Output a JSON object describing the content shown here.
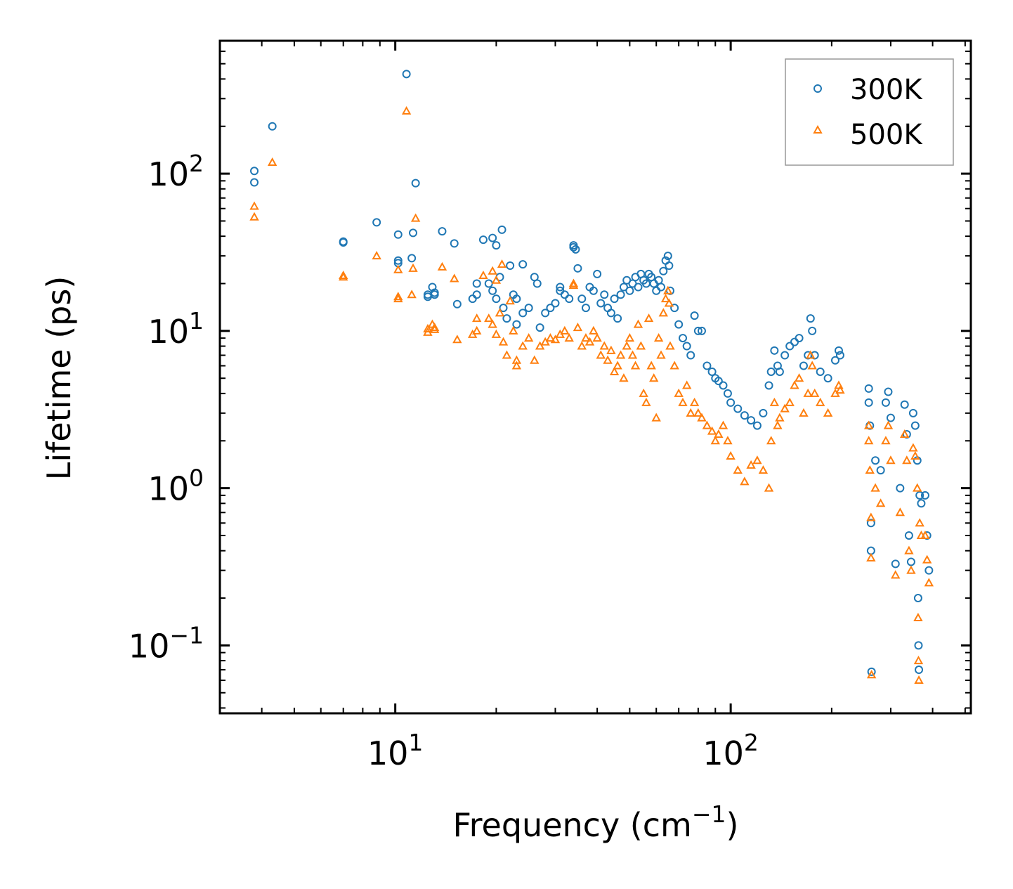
{
  "chart_data": {
    "type": "scatter",
    "xscale": "log",
    "yscale": "log",
    "xlabel": "Frequency (cm",
    "xlabel_sup": "−1",
    "xlabel_end": ")",
    "ylabel": "Lifetime (ps)",
    "xlim": [
      3.0,
      520
    ],
    "ylim": [
      0.037,
      700
    ],
    "x_ticks": [
      {
        "value": 10,
        "base": "10",
        "exp": "1"
      },
      {
        "value": 100,
        "base": "10",
        "exp": "2"
      }
    ],
    "y_ticks": [
      {
        "value": 0.1,
        "base": "10",
        "exp": "−1"
      },
      {
        "value": 1,
        "base": "10",
        "exp": "0"
      },
      {
        "value": 10,
        "base": "10",
        "exp": "1"
      },
      {
        "value": 100,
        "base": "10",
        "exp": "2"
      }
    ],
    "legend_position": "top-right",
    "series": [
      {
        "name": "300K",
        "marker": "circle",
        "color": "#1f77b4",
        "points": [
          [
            3.8,
            104
          ],
          [
            3.8,
            88
          ],
          [
            4.3,
            200
          ],
          [
            7.0,
            37
          ],
          [
            7.0,
            36.5
          ],
          [
            8.8,
            49
          ],
          [
            10.2,
            41
          ],
          [
            10.2,
            28
          ],
          [
            10.2,
            27
          ],
          [
            10.8,
            430
          ],
          [
            11.2,
            29
          ],
          [
            11.3,
            42
          ],
          [
            11.5,
            87
          ],
          [
            12.5,
            17
          ],
          [
            12.5,
            16.5
          ],
          [
            12.9,
            19
          ],
          [
            13.1,
            17.5
          ],
          [
            13.1,
            17
          ],
          [
            13.8,
            43
          ],
          [
            15.0,
            36
          ],
          [
            15.3,
            14.8
          ],
          [
            17.0,
            16
          ],
          [
            17.5,
            20
          ],
          [
            17.5,
            17
          ],
          [
            18.3,
            38
          ],
          [
            19.0,
            20
          ],
          [
            19.5,
            39
          ],
          [
            19.5,
            18
          ],
          [
            20.0,
            16
          ],
          [
            20.0,
            35
          ],
          [
            20.5,
            22
          ],
          [
            20.8,
            44
          ],
          [
            21.0,
            14
          ],
          [
            21.5,
            12
          ],
          [
            22.0,
            26
          ],
          [
            22.5,
            17
          ],
          [
            23.0,
            11
          ],
          [
            23.0,
            16
          ],
          [
            24.0,
            26.5
          ],
          [
            24.0,
            13
          ],
          [
            25.0,
            14
          ],
          [
            26.0,
            22
          ],
          [
            26.5,
            20
          ],
          [
            27.0,
            10.5
          ],
          [
            28.0,
            13
          ],
          [
            29.0,
            14
          ],
          [
            30.0,
            15
          ],
          [
            31.0,
            18
          ],
          [
            31.0,
            19
          ],
          [
            32.0,
            17
          ],
          [
            33.0,
            16
          ],
          [
            34.0,
            35
          ],
          [
            34.0,
            34
          ],
          [
            34.5,
            33
          ],
          [
            35.0,
            25
          ],
          [
            36.0,
            16
          ],
          [
            37.0,
            14
          ],
          [
            38.0,
            19
          ],
          [
            39.0,
            18
          ],
          [
            40.0,
            23
          ],
          [
            41.0,
            15
          ],
          [
            42.0,
            17
          ],
          [
            43.0,
            14
          ],
          [
            44.0,
            13
          ],
          [
            45.0,
            16
          ],
          [
            46.0,
            12
          ],
          [
            47.0,
            17
          ],
          [
            48.0,
            19
          ],
          [
            49.0,
            21
          ],
          [
            50.0,
            18
          ],
          [
            51.0,
            20
          ],
          [
            52.0,
            22
          ],
          [
            53.0,
            19
          ],
          [
            54.0,
            23
          ],
          [
            55.0,
            21
          ],
          [
            56.0,
            20
          ],
          [
            57.0,
            23
          ],
          [
            58.0,
            22
          ],
          [
            59.0,
            20
          ],
          [
            60.0,
            18
          ],
          [
            61.0,
            21
          ],
          [
            62.0,
            19
          ],
          [
            63.0,
            24
          ],
          [
            64.0,
            28
          ],
          [
            65.0,
            30
          ],
          [
            65.5,
            26
          ],
          [
            66.0,
            18
          ],
          [
            68.0,
            14
          ],
          [
            70.0,
            11
          ],
          [
            72.0,
            9
          ],
          [
            74.0,
            8
          ],
          [
            76.0,
            7
          ],
          [
            78.0,
            12.5
          ],
          [
            80.0,
            10
          ],
          [
            82.0,
            10
          ],
          [
            85.0,
            6
          ],
          [
            88.0,
            5.5
          ],
          [
            90.0,
            5
          ],
          [
            92.0,
            4.8
          ],
          [
            95.0,
            4.5
          ],
          [
            98.0,
            4
          ],
          [
            100.0,
            3.5
          ],
          [
            105.0,
            3.2
          ],
          [
            110.0,
            2.9
          ],
          [
            115.0,
            2.7
          ],
          [
            120.0,
            2.5
          ],
          [
            125.0,
            3.0
          ],
          [
            130.0,
            4.5
          ],
          [
            132.0,
            5.5
          ],
          [
            135.0,
            7.5
          ],
          [
            138.0,
            6.0
          ],
          [
            140.0,
            5.5
          ],
          [
            145.0,
            7.0
          ],
          [
            150.0,
            8.0
          ],
          [
            155.0,
            8.5
          ],
          [
            160.0,
            9.0
          ],
          [
            165.0,
            6.0
          ],
          [
            170.0,
            7.0
          ],
          [
            173.0,
            12
          ],
          [
            175.0,
            10
          ],
          [
            178.0,
            7
          ],
          [
            185.0,
            5.5
          ],
          [
            195.0,
            5.0
          ],
          [
            205.0,
            6.5
          ],
          [
            210.0,
            7.5
          ],
          [
            212.0,
            7.0
          ],
          [
            258.0,
            4.3
          ],
          [
            258.0,
            3.5
          ],
          [
            260.0,
            2.5
          ],
          [
            262.0,
            0.6
          ],
          [
            262.0,
            0.4
          ],
          [
            263.0,
            0.068
          ],
          [
            270.0,
            1.5
          ],
          [
            280.0,
            1.3
          ],
          [
            290.0,
            3.5
          ],
          [
            295.0,
            4.1
          ],
          [
            300.0,
            2.8
          ],
          [
            310.0,
            0.33
          ],
          [
            320.0,
            1.0
          ],
          [
            330.0,
            3.4
          ],
          [
            335.0,
            2.2
          ],
          [
            340.0,
            0.5
          ],
          [
            345.0,
            0.34
          ],
          [
            350.0,
            3.0
          ],
          [
            355.0,
            2.5
          ],
          [
            360.0,
            1.5
          ],
          [
            362.0,
            0.2
          ],
          [
            363.0,
            0.1
          ],
          [
            364.0,
            0.07
          ],
          [
            366.0,
            0.9
          ],
          [
            370.0,
            0.8
          ],
          [
            380.0,
            0.9
          ],
          [
            385.0,
            0.5
          ],
          [
            390.0,
            0.3
          ]
        ]
      },
      {
        "name": "500K",
        "marker": "triangle",
        "color": "#ff7f0e",
        "points": [
          [
            3.8,
            62
          ],
          [
            3.8,
            53
          ],
          [
            4.3,
            118
          ],
          [
            7.0,
            22.5
          ],
          [
            7.0,
            22
          ],
          [
            8.8,
            30
          ],
          [
            10.2,
            24.5
          ],
          [
            10.2,
            16.5
          ],
          [
            10.2,
            16
          ],
          [
            10.8,
            250
          ],
          [
            11.2,
            17
          ],
          [
            11.3,
            25
          ],
          [
            11.5,
            52
          ],
          [
            12.5,
            10.3
          ],
          [
            12.5,
            9.8
          ],
          [
            12.9,
            11
          ],
          [
            13.1,
            10.5
          ],
          [
            13.1,
            10.2
          ],
          [
            13.8,
            25.5
          ],
          [
            15.0,
            21.5
          ],
          [
            15.3,
            8.8
          ],
          [
            17.0,
            9.5
          ],
          [
            17.5,
            12
          ],
          [
            17.5,
            10
          ],
          [
            18.3,
            22.5
          ],
          [
            19.0,
            12
          ],
          [
            19.5,
            24
          ],
          [
            19.5,
            11
          ],
          [
            20.0,
            9.5
          ],
          [
            20.0,
            21
          ],
          [
            20.5,
            13
          ],
          [
            20.8,
            26.5
          ],
          [
            21.0,
            8.5
          ],
          [
            21.5,
            7
          ],
          [
            22.0,
            15.5
          ],
          [
            22.5,
            10
          ],
          [
            23.0,
            6.5
          ],
          [
            23.0,
            6
          ],
          [
            24.0,
            8
          ],
          [
            25.0,
            9
          ],
          [
            26.0,
            6.5
          ],
          [
            27.0,
            8
          ],
          [
            28.0,
            8.5
          ],
          [
            29.0,
            9
          ],
          [
            30.0,
            8.8
          ],
          [
            31.0,
            9.5
          ],
          [
            32.0,
            10
          ],
          [
            33.0,
            9
          ],
          [
            34.0,
            20
          ],
          [
            34.0,
            19.5
          ],
          [
            35.0,
            10.5
          ],
          [
            36.0,
            8
          ],
          [
            37.0,
            9
          ],
          [
            38.0,
            8.5
          ],
          [
            39.0,
            10
          ],
          [
            40.0,
            9
          ],
          [
            41.0,
            7
          ],
          [
            42.0,
            8
          ],
          [
            43.0,
            6.5
          ],
          [
            44.0,
            7.5
          ],
          [
            45.0,
            5.5
          ],
          [
            46.0,
            6
          ],
          [
            47.0,
            7
          ],
          [
            48.0,
            5
          ],
          [
            49.0,
            8
          ],
          [
            50.0,
            9
          ],
          [
            51.0,
            7
          ],
          [
            52.0,
            6
          ],
          [
            53.0,
            11
          ],
          [
            54.0,
            8
          ],
          [
            55.0,
            4
          ],
          [
            56.0,
            3.5
          ],
          [
            57.0,
            12
          ],
          [
            58.0,
            6
          ],
          [
            59.0,
            5
          ],
          [
            60.0,
            2.8
          ],
          [
            61.0,
            9
          ],
          [
            62.0,
            7
          ],
          [
            63.0,
            13
          ],
          [
            64.0,
            16
          ],
          [
            65.0,
            18
          ],
          [
            65.5,
            15
          ],
          [
            66.0,
            8
          ],
          [
            68.0,
            6
          ],
          [
            70.0,
            4
          ],
          [
            72.0,
            3.5
          ],
          [
            74.0,
            4.5
          ],
          [
            76.0,
            3
          ],
          [
            78.0,
            3.5
          ],
          [
            80.0,
            3
          ],
          [
            82.0,
            2.8
          ],
          [
            85.0,
            2.5
          ],
          [
            88.0,
            2.3
          ],
          [
            90.0,
            2.0
          ],
          [
            92.0,
            2.2
          ],
          [
            95.0,
            2.5
          ],
          [
            98.0,
            2.0
          ],
          [
            100.0,
            1.6
          ],
          [
            105.0,
            1.3
          ],
          [
            110.0,
            1.1
          ],
          [
            115.0,
            1.4
          ],
          [
            120.0,
            1.5
          ],
          [
            125.0,
            1.3
          ],
          [
            130.0,
            1.0
          ],
          [
            132.0,
            2.0
          ],
          [
            135.0,
            3.5
          ],
          [
            138.0,
            2.5
          ],
          [
            140.0,
            2.8
          ],
          [
            145.0,
            3.2
          ],
          [
            150.0,
            3.5
          ],
          [
            155.0,
            4.5
          ],
          [
            160.0,
            5.0
          ],
          [
            165.0,
            3.0
          ],
          [
            170.0,
            4.0
          ],
          [
            173.0,
            7
          ],
          [
            175.0,
            6
          ],
          [
            178.0,
            4
          ],
          [
            185.0,
            3.5
          ],
          [
            195.0,
            3.0
          ],
          [
            205.0,
            4.0
          ],
          [
            210.0,
            4.5
          ],
          [
            212.0,
            4.2
          ],
          [
            258.0,
            2.5
          ],
          [
            258.0,
            2.0
          ],
          [
            260.0,
            1.3
          ],
          [
            262.0,
            0.65
          ],
          [
            262.0,
            0.36
          ],
          [
            263.0,
            0.065
          ],
          [
            270.0,
            1.0
          ],
          [
            280.0,
            0.8
          ],
          [
            290.0,
            2.0
          ],
          [
            295.0,
            2.5
          ],
          [
            300.0,
            1.5
          ],
          [
            310.0,
            0.28
          ],
          [
            320.0,
            0.7
          ],
          [
            330.0,
            2.2
          ],
          [
            335.0,
            1.5
          ],
          [
            340.0,
            0.4
          ],
          [
            345.0,
            0.3
          ],
          [
            350.0,
            1.8
          ],
          [
            355.0,
            1.6
          ],
          [
            360.0,
            1.0
          ],
          [
            362.0,
            0.15
          ],
          [
            363.0,
            0.08
          ],
          [
            364.0,
            0.06
          ],
          [
            366.0,
            0.6
          ],
          [
            370.0,
            0.5
          ],
          [
            380.0,
            0.5
          ],
          [
            385.0,
            0.35
          ],
          [
            390.0,
            0.25
          ]
        ]
      }
    ]
  }
}
